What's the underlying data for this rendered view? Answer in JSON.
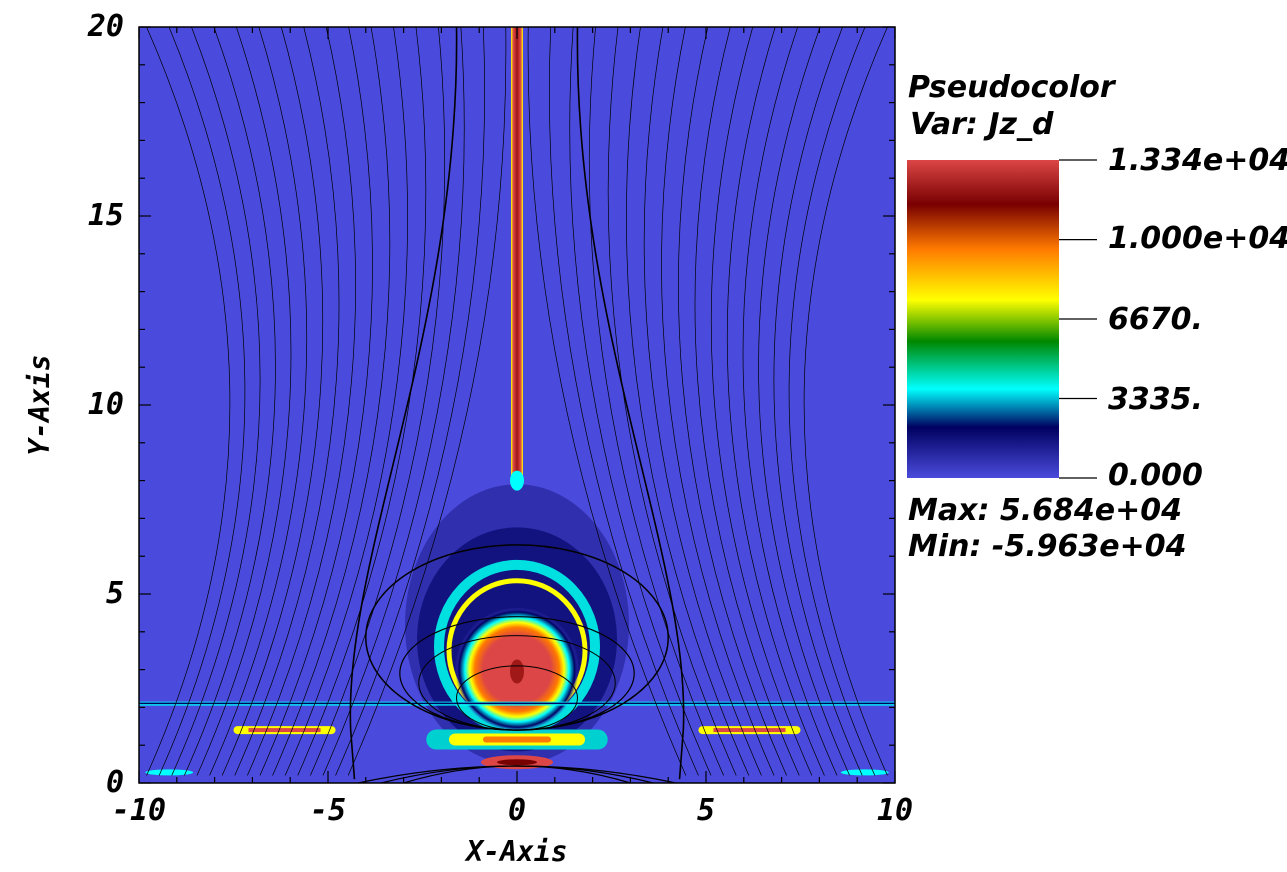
{
  "legend": {
    "title": "Pseudocolor",
    "var": "Var: Jz_d",
    "ticks": [
      "1.334e+04",
      "1.000e+04",
      "6670.",
      "3335.",
      "0.000"
    ],
    "max": "Max:  5.684e+04",
    "min": "Min: -5.963e+04"
  },
  "colors": {
    "background": "#4a4bdc",
    "streamline": "#000000",
    "colormap": [
      "#4a4bdc",
      "#000060",
      "#00ffff",
      "#008800",
      "#ffff00",
      "#ff7a00",
      "#780000",
      "#dc4646"
    ]
  },
  "chart_data": {
    "type": "heatmap",
    "title": "",
    "xlabel": "X-Axis",
    "ylabel": "Y-Axis",
    "xlim": [
      -10,
      10
    ],
    "ylim": [
      0,
      20
    ],
    "x_ticks": [
      "-10",
      "-5",
      "0",
      "5",
      "10"
    ],
    "y_ticks": [
      "0",
      "5",
      "10",
      "15",
      "20"
    ],
    "variable": "Jz_d",
    "colorbar_range": [
      0,
      13340
    ],
    "colorbar_ticks": [
      13340,
      10000,
      6670,
      3335,
      0
    ],
    "data_max": 56840,
    "data_min": -59630,
    "features": [
      {
        "name": "current sheet",
        "x": 0,
        "y_from": 8,
        "y_to": 20,
        "level": "max"
      },
      {
        "name": "flux rope core",
        "x": 0,
        "y": 3,
        "level": "max"
      },
      {
        "name": "horizontal filament",
        "y": 2.1,
        "x_from": -10,
        "x_to": 10,
        "level": "mid"
      },
      {
        "name": "low arcade band",
        "y": 1.3,
        "x_from": -8,
        "x_to": 8,
        "level": "high"
      }
    ],
    "grid": false,
    "legend_position": "right"
  }
}
